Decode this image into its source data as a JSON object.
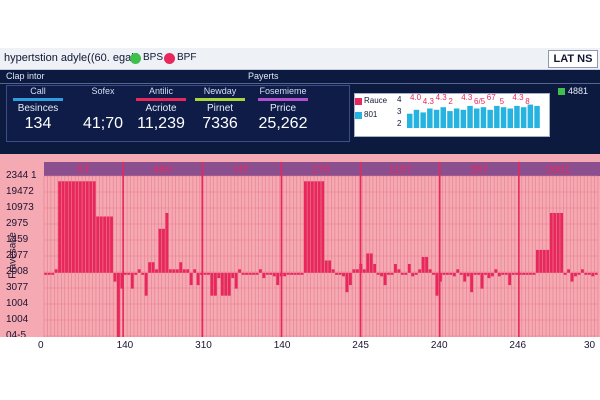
{
  "header": {
    "title": "hypertstion adyle((60. egall)",
    "legend": [
      {
        "label": "BPS",
        "color": "#3fbf4d"
      },
      {
        "label": "BPF",
        "color": "#e8275c"
      }
    ],
    "live_button": "LAT NS"
  },
  "sections": {
    "left": "Clap intor",
    "right": "Payerts"
  },
  "stats": [
    {
      "head": "Call",
      "bar_color": "#2d9fe0",
      "name": "Besinces",
      "value": "134"
    },
    {
      "head": "Sofex",
      "bar_color": "",
      "name": "",
      "value": "41;70"
    },
    {
      "head": "Antilic",
      "bar_color": "#e8275c",
      "name": "Acriote",
      "value": "11,239"
    },
    {
      "head": "Newday",
      "bar_color": "#a8d63a",
      "name": "Pirnet",
      "value": "7336"
    },
    {
      "head": "Fosemieme",
      "bar_color": "#b24fd0",
      "name": "Prrice",
      "value": "25,262"
    }
  ],
  "mini_chart": {
    "legend": [
      "Rauce",
      "801"
    ],
    "y_ticks": [
      "4",
      "3",
      "2"
    ],
    "badge_value": "4881",
    "badge_color": "#3fbf4d",
    "bar_color": "#27b3e0",
    "line_color": "#e8275c",
    "labels": [
      "4.0",
      "4.3",
      "4.3",
      "2",
      "4.3",
      "6/5",
      "67",
      "5",
      "4.3",
      "8"
    ],
    "bar_values": [
      0.55,
      0.7,
      0.6,
      0.75,
      0.7,
      0.8,
      0.65,
      0.75,
      0.7,
      0.85,
      0.75,
      0.8,
      0.7,
      0.85,
      0.8,
      0.75,
      0.85,
      0.8,
      0.9,
      0.85
    ]
  },
  "chart_data": {
    "type": "bar",
    "top_labels": [
      "5T",
      "49V",
      "HT",
      "275",
      "1157",
      "267",
      "2001"
    ],
    "y_ticks": [
      "2344 1",
      "19472",
      "10973",
      "2975",
      "1459",
      "2077",
      "2008",
      "3077",
      "1004",
      "1004",
      "04-5"
    ],
    "y_axis_title": "Fravesace",
    "x_ticks": [
      "0",
      "140",
      "310",
      "140",
      "245",
      "240",
      "246",
      "30"
    ],
    "colors": {
      "background": "#f5a9b2",
      "bars": "#e8275c",
      "header_band": "#8b4f8f",
      "grid": "#e77d8d"
    },
    "series": [
      {
        "values": [
          0.45,
          0.45,
          0.45,
          0.47,
          0.97,
          0.97,
          0.97,
          0.97,
          0.97,
          0.97,
          0.97,
          0.97,
          0.97,
          0.97,
          0.97,
          0.77,
          0.77,
          0.77,
          0.77,
          0.77,
          0.4,
          0.08,
          0.36,
          0.45,
          0.45,
          0.36,
          0.45,
          0.47,
          0.45,
          0.32,
          0.51,
          0.51,
          0.47,
          0.7,
          0.7,
          0.79,
          0.47,
          0.47,
          0.47,
          0.51,
          0.47,
          0.47,
          0.38,
          0.47,
          0.38,
          0.45,
          0.45,
          0.45,
          0.32,
          0.32,
          0.42,
          0.32,
          0.32,
          0.32,
          0.42,
          0.36,
          0.47,
          0.45,
          0.45,
          0.45,
          0.45,
          0.45,
          0.47,
          0.42,
          0.45,
          0.45,
          0.43,
          0.38,
          0.43,
          0.43,
          0.45,
          0.45,
          0.45,
          0.45,
          0.45,
          0.97,
          0.97,
          0.97,
          0.97,
          0.97,
          0.97,
          0.52,
          0.52,
          0.47,
          0.45,
          0.45,
          0.43,
          0.34,
          0.38,
          0.47,
          0.47,
          0.5,
          0.47,
          0.56,
          0.56,
          0.5,
          0.45,
          0.43,
          0.38,
          0.45,
          0.45,
          0.5,
          0.47,
          0.45,
          0.45,
          0.5,
          0.43,
          0.45,
          0.47,
          0.54,
          0.54,
          0.47,
          0.45,
          0.32,
          0.4,
          0.45,
          0.45,
          0.45,
          0.43,
          0.47,
          0.45,
          0.4,
          0.43,
          0.34,
          0.45,
          0.45,
          0.36,
          0.45,
          0.42,
          0.43,
          0.47,
          0.43,
          0.45,
          0.45,
          0.38,
          0.45,
          0.45,
          0.45,
          0.45,
          0.45,
          0.45,
          0.45,
          0.58,
          0.58,
          0.58,
          0.58,
          0.79,
          0.79,
          0.79,
          0.79,
          0.45,
          0.47,
          0.4,
          0.43,
          0.45,
          0.47,
          0.45,
          0.45,
          0.43,
          0.45
        ]
      }
    ]
  }
}
